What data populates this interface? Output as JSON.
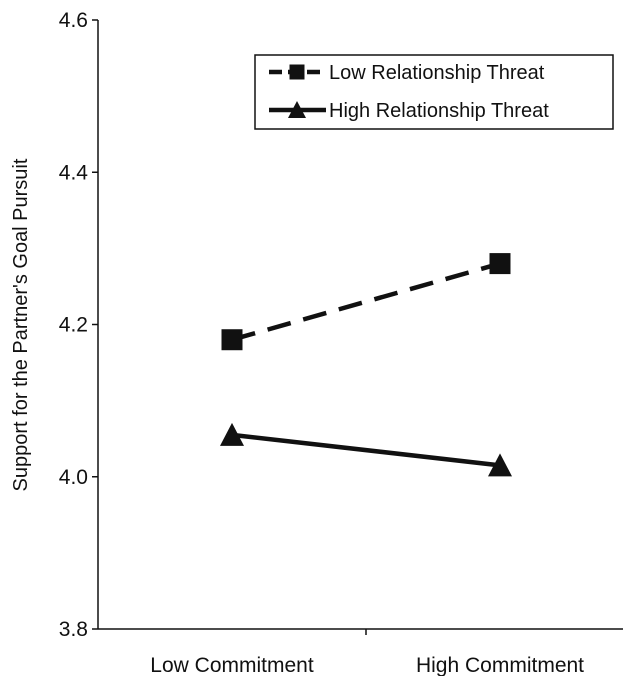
{
  "chart_data": {
    "type": "line",
    "title": "",
    "xlabel": "",
    "ylabel": "Support for the Partner's Goal Pursuit",
    "categories": [
      "Low Commitment",
      "High Commitment"
    ],
    "ylim": [
      3.8,
      4.6
    ],
    "yticks": [
      "3.8",
      "4.0",
      "4.2",
      "4.4",
      "4.6"
    ],
    "grid": false,
    "legend_position": "top-right",
    "series": [
      {
        "name": "Low Relationship Threat",
        "values": [
          4.18,
          4.28
        ],
        "line_style": "dashed",
        "marker": "square",
        "color": "#111111"
      },
      {
        "name": "High Relationship Threat",
        "values": [
          4.055,
          4.015
        ],
        "line_style": "solid",
        "marker": "triangle",
        "color": "#111111"
      }
    ]
  }
}
